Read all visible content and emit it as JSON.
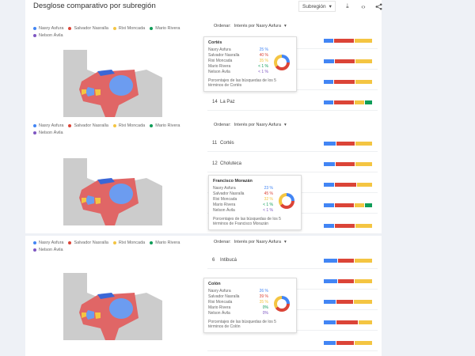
{
  "header": {
    "title": "Desglose comparativo por subregión",
    "region_select": "Subregión",
    "icons": [
      "download-icon",
      "embed-code-icon",
      "share-icon"
    ]
  },
  "colors": {
    "nasry": "#4285f4",
    "salvador": "#db4437",
    "rixi": "#f4c542",
    "mario": "#0f9d58",
    "nelson": "#7e57c2",
    "map_gray": "#cccccc"
  },
  "legend": [
    {
      "label": "Nasry Asfura",
      "color": "#4285f4"
    },
    {
      "label": "Salvador Nasralla",
      "color": "#db4437"
    },
    {
      "label": "Rixi Moncada",
      "color": "#f4c542"
    },
    {
      "label": "Mario Rivera",
      "color": "#0f9d58"
    },
    {
      "label": "Nelson Ávila",
      "color": "#7e57c2"
    }
  ],
  "order": {
    "label": "Ordenar:",
    "value": "Interés por Nasry Asfura"
  },
  "panels": [
    {
      "rows": [
        {
          "rank": "",
          "name": "",
          "bar": [
            20,
            40,
            35,
            0
          ]
        },
        {
          "rank": "",
          "name": "",
          "bar": [
            22,
            40,
            35,
            0
          ]
        },
        {
          "rank": "",
          "name": "",
          "bar": [
            20,
            44,
            35,
            0
          ]
        },
        {
          "rank": "14",
          "name": "La Paz",
          "bar": [
            20,
            40,
            20,
            15
          ]
        }
      ],
      "tooltip": {
        "title": "Cortés",
        "rows": [
          {
            "label": "Nasry Asfura",
            "value": "25 %"
          },
          {
            "label": "Salvador Nasralla",
            "value": "40 %"
          },
          {
            "label": "Rixi Moncada",
            "value": "35 %"
          },
          {
            "label": "Mario Rivera",
            "value": "< 1 %"
          },
          {
            "label": "Nelson Ávila",
            "value": "< 1 %"
          }
        ],
        "footer": "Porcentajes de las búsquedas de los 5 términos de Cortés"
      }
    },
    {
      "rows": [
        {
          "rank": "11",
          "name": "Cortés",
          "bar": [
            25,
            40,
            35,
            0
          ]
        },
        {
          "rank": "12",
          "name": "Choluteca",
          "bar": [
            23,
            42,
            35,
            0
          ]
        },
        {
          "rank": "",
          "name": "",
          "bar": [
            22,
            45,
            33,
            0
          ]
        },
        {
          "rank": "",
          "name": "",
          "bar": [
            22,
            40,
            20,
            15
          ]
        },
        {
          "rank": "",
          "name": "",
          "bar": [
            22,
            43,
            35,
            0
          ]
        }
      ],
      "tooltip": {
        "title": "Francisco Morazán",
        "rows": [
          {
            "label": "Nasry Asfura",
            "value": "23 %"
          },
          {
            "label": "Salvador Nasralla",
            "value": "45 %"
          },
          {
            "label": "Rixi Moncada",
            "value": "32 %"
          },
          {
            "label": "Mario Rivera",
            "value": "< 1 %"
          },
          {
            "label": "Nelson Ávila",
            "value": "< 1 %"
          }
        ],
        "footer": "Porcentajes de las búsquedas de los 5 términos de Francisco Morazán"
      }
    },
    {
      "rows": [
        {
          "rank": "6",
          "name": "Intibucá",
          "bar": [
            28,
            35,
            37,
            0
          ]
        },
        {
          "rank": "",
          "name": "",
          "bar": [
            28,
            35,
            37,
            0
          ]
        },
        {
          "rank": "",
          "name": "",
          "bar": [
            26,
            35,
            39,
            0
          ]
        },
        {
          "rank": "",
          "name": "",
          "bar": [
            26,
            46,
            28,
            0
          ]
        },
        {
          "rank": "",
          "name": "",
          "bar": [
            26,
            37,
            37,
            0
          ]
        }
      ],
      "tooltip": {
        "title": "Colón",
        "rows": [
          {
            "label": "Nasry Asfura",
            "value": "26 %"
          },
          {
            "label": "Salvador Nasralla",
            "value": "39 %"
          },
          {
            "label": "Rixi Moncada",
            "value": "35 %"
          },
          {
            "label": "Mario Rivera",
            "value": "0%"
          },
          {
            "label": "Nelson Ávila",
            "value": "0%"
          }
        ],
        "footer": "Porcentajes de las búsquedas de los 5 términos de Colón"
      }
    }
  ]
}
